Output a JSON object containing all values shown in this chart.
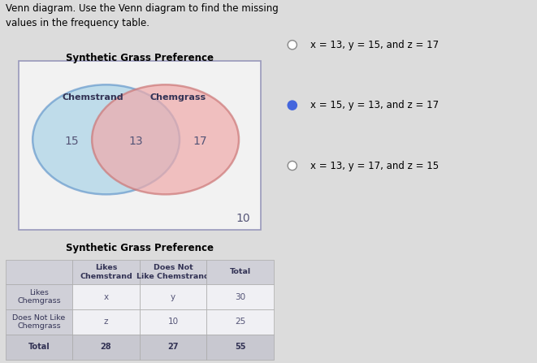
{
  "title_text": "Venn diagram. Use the Venn diagram to find the missing\nvalues in the frequency table.",
  "venn_title": "Synthetic Grass Preference",
  "table_title": "Synthetic Grass Preference",
  "left_label": "Chemstrand",
  "right_label": "Chemgrass",
  "left_only_val": "15",
  "intersection_val": "13",
  "right_only_val": "17",
  "outside_val": "10",
  "circle_left_face": "#aad4e8",
  "circle_left_edge": "#6699cc",
  "circle_right_face": "#f0aaaa",
  "circle_right_edge": "#cc7777",
  "radio_options": [
    "x = 13, y = 15, and z = 17",
    "x = 15, y = 13, and z = 17",
    "x = 13, y = 17, and z = 15"
  ],
  "selected_option": 1,
  "selected_color": "#4466dd",
  "unselected_color": "#888888",
  "table_col_headers": [
    "Likes\nChemstrand",
    "Does Not\nLike Chemstrand",
    "Total"
  ],
  "table_row_headers": [
    "Likes\nChemgrass",
    "Does Not Like\nChemgrass",
    "Total"
  ],
  "table_data": [
    [
      "x",
      "y",
      "30"
    ],
    [
      "z",
      "10",
      "25"
    ],
    [
      "28",
      "27",
      "55"
    ]
  ],
  "bg_color": "#dcdcdc",
  "venn_box_facecolor": "#f2f2f2",
  "venn_box_edgecolor": "#9999bb",
  "text_color": "#333355",
  "number_color": "#555577"
}
